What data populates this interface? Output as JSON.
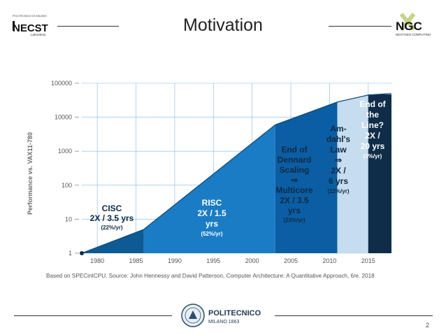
{
  "slide": {
    "title": "Motivation",
    "page_number": "2",
    "logos": {
      "left_small_text": "POLITECNICO DI MILANO",
      "left_main": "NECST",
      "left_sub": "Laboratory",
      "right_main": "NGC",
      "right_sub": "NEXTGEN COMPUTING",
      "footer_name": "POLITECNICO",
      "footer_sub": "MILANO 1863"
    },
    "caption": "Based on SPECintCPU. Source: John Hennessy and David Patterson, Computer Architecture: A Quantitative Approach, 6/e. 2018"
  },
  "colors": {
    "cisc": "#0e5a94",
    "risc": "#1a7cc4",
    "dennard": "#0b5ea3",
    "amdahl": "#c6dcef",
    "end": "#0f2d49",
    "grid": "#7fb8e3",
    "text_light": "#ffffff",
    "text_dark": "#0e2a44"
  },
  "chart_data": {
    "type": "area",
    "ylabel": "Performance vs. VAX11-780",
    "yscale": "log",
    "ylim": [
      1,
      100000
    ],
    "xlim": [
      1978,
      2018
    ],
    "y_ticks": [
      1,
      10,
      100,
      1000,
      10000,
      100000
    ],
    "y_tick_labels": [
      "1",
      "10",
      "100",
      "1000",
      "10000",
      "100000"
    ],
    "x_ticks": [
      1980,
      1985,
      1990,
      1995,
      2000,
      2005,
      2010,
      2015
    ],
    "x_tick_labels": [
      "1980",
      "1985",
      "1990",
      "1995",
      "2000",
      "2005",
      "2010",
      "2015"
    ],
    "grid": true,
    "series": [
      {
        "x": [
          1978,
          1986,
          2003,
          2011,
          2015,
          2018
        ],
        "y": [
          1,
          5,
          6000,
          28000,
          45000,
          50000
        ]
      }
    ],
    "regions": [
      {
        "lines": [
          "CISC",
          "2X / 3.5 yrs"
        ],
        "rate": "(22%/yr)"
      },
      {
        "lines": [
          "RISC",
          "2X / 1.5",
          "yrs"
        ],
        "rate": "(52%/yr)"
      },
      {
        "lines": [
          "End of",
          "Dennard",
          "Scaling",
          "⇒",
          "Multicore",
          "2X / 3.5",
          "yrs"
        ],
        "rate": "(23%/yr)"
      },
      {
        "lines": [
          "Am-",
          "dahl's",
          "Law",
          "⇒",
          "2X /",
          "6 yrs"
        ],
        "rate": "(12%/yr)"
      },
      {
        "lines": [
          "End of",
          "the",
          "Line?",
          "2X /",
          "20 yrs"
        ],
        "rate": "(3%/yr)"
      }
    ]
  }
}
